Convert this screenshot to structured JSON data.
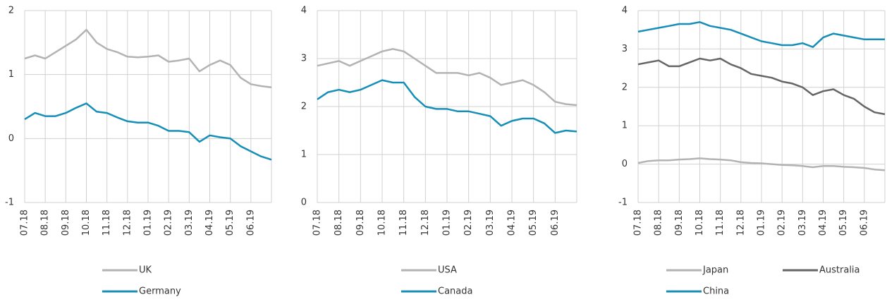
{
  "chart_data": [
    {
      "type": "line",
      "ylim": [
        -1,
        2
      ],
      "yticks": [
        -1,
        0,
        1,
        2
      ],
      "grid": true,
      "legend": "bottom",
      "categories": [
        "07.18",
        null,
        "08.18",
        null,
        "09.18",
        null,
        "10.18",
        null,
        "11.18",
        null,
        "12.18",
        null,
        "01.19",
        null,
        "02.19",
        null,
        "03.19",
        null,
        "04.19",
        null,
        "05.19",
        null,
        "06.19",
        null,
        null
      ],
      "series": [
        {
          "name": "UK",
          "color": "#b3b3b3",
          "values": [
            1.25,
            1.3,
            1.25,
            1.35,
            1.45,
            1.55,
            1.7,
            1.5,
            1.4,
            1.35,
            1.28,
            1.27,
            1.28,
            1.3,
            1.2,
            1.22,
            1.25,
            1.05,
            1.15,
            1.22,
            1.15,
            0.95,
            0.85,
            0.82,
            0.8
          ]
        },
        {
          "name": "Germany",
          "color": "#168fb8",
          "values": [
            0.3,
            0.4,
            0.35,
            0.35,
            0.4,
            0.48,
            0.55,
            0.42,
            0.4,
            0.33,
            0.27,
            0.25,
            0.25,
            0.2,
            0.12,
            0.12,
            0.1,
            -0.05,
            0.05,
            0.02,
            0.0,
            -0.12,
            -0.2,
            -0.28,
            -0.33
          ]
        }
      ]
    },
    {
      "type": "line",
      "ylim": [
        0,
        4
      ],
      "yticks": [
        0,
        1,
        2,
        3,
        4
      ],
      "grid": true,
      "legend": "bottom",
      "categories": [
        "07.18",
        null,
        "08.18",
        null,
        "09.18",
        null,
        "10.18",
        null,
        "11.18",
        null,
        "12.18",
        null,
        "01.19",
        null,
        "02.19",
        null,
        "03.19",
        null,
        "04.19",
        null,
        "05.19",
        null,
        "06.19",
        null,
        null
      ],
      "series": [
        {
          "name": "USA",
          "color": "#b3b3b3",
          "values": [
            2.85,
            2.9,
            2.95,
            2.85,
            2.95,
            3.05,
            3.15,
            3.2,
            3.15,
            3.0,
            2.85,
            2.7,
            2.7,
            2.7,
            2.65,
            2.7,
            2.6,
            2.45,
            2.5,
            2.55,
            2.45,
            2.3,
            2.1,
            2.05,
            2.03
          ]
        },
        {
          "name": "Canada",
          "color": "#168fb8",
          "values": [
            2.15,
            2.3,
            2.35,
            2.3,
            2.35,
            2.45,
            2.55,
            2.5,
            2.5,
            2.2,
            2.0,
            1.95,
            1.95,
            1.9,
            1.9,
            1.85,
            1.8,
            1.6,
            1.7,
            1.75,
            1.75,
            1.65,
            1.45,
            1.5,
            1.48
          ]
        }
      ]
    },
    {
      "type": "line",
      "ylim": [
        -1,
        4
      ],
      "yticks": [
        -1,
        0,
        1,
        2,
        3,
        4
      ],
      "grid": true,
      "legend": "bottom",
      "categories": [
        "07.18",
        null,
        "08.18",
        null,
        "09.18",
        null,
        "10.18",
        null,
        "11.18",
        null,
        "12.18",
        null,
        "01.19",
        null,
        "02.19",
        null,
        "03.19",
        null,
        "04.19",
        null,
        "05.19",
        null,
        "06.19",
        null,
        null
      ],
      "series": [
        {
          "name": "Japan",
          "color": "#b3b3b3",
          "values": [
            0.03,
            0.08,
            0.1,
            0.1,
            0.12,
            0.13,
            0.15,
            0.13,
            0.12,
            0.1,
            0.05,
            0.03,
            0.02,
            0.0,
            -0.02,
            -0.03,
            -0.05,
            -0.08,
            -0.05,
            -0.05,
            -0.07,
            -0.08,
            -0.1,
            -0.14,
            -0.16
          ]
        },
        {
          "name": "Australia",
          "color": "#666666",
          "values": [
            2.6,
            2.65,
            2.7,
            2.55,
            2.55,
            2.65,
            2.75,
            2.7,
            2.75,
            2.6,
            2.5,
            2.35,
            2.3,
            2.25,
            2.15,
            2.1,
            2.0,
            1.8,
            1.9,
            1.95,
            1.8,
            1.7,
            1.5,
            1.35,
            1.3
          ]
        },
        {
          "name": "China",
          "color": "#168fb8",
          "values": [
            3.45,
            3.5,
            3.55,
            3.6,
            3.65,
            3.65,
            3.7,
            3.6,
            3.55,
            3.5,
            3.4,
            3.3,
            3.2,
            3.15,
            3.1,
            3.1,
            3.15,
            3.05,
            3.3,
            3.4,
            3.35,
            3.3,
            3.25,
            3.25,
            3.25
          ]
        }
      ]
    }
  ]
}
